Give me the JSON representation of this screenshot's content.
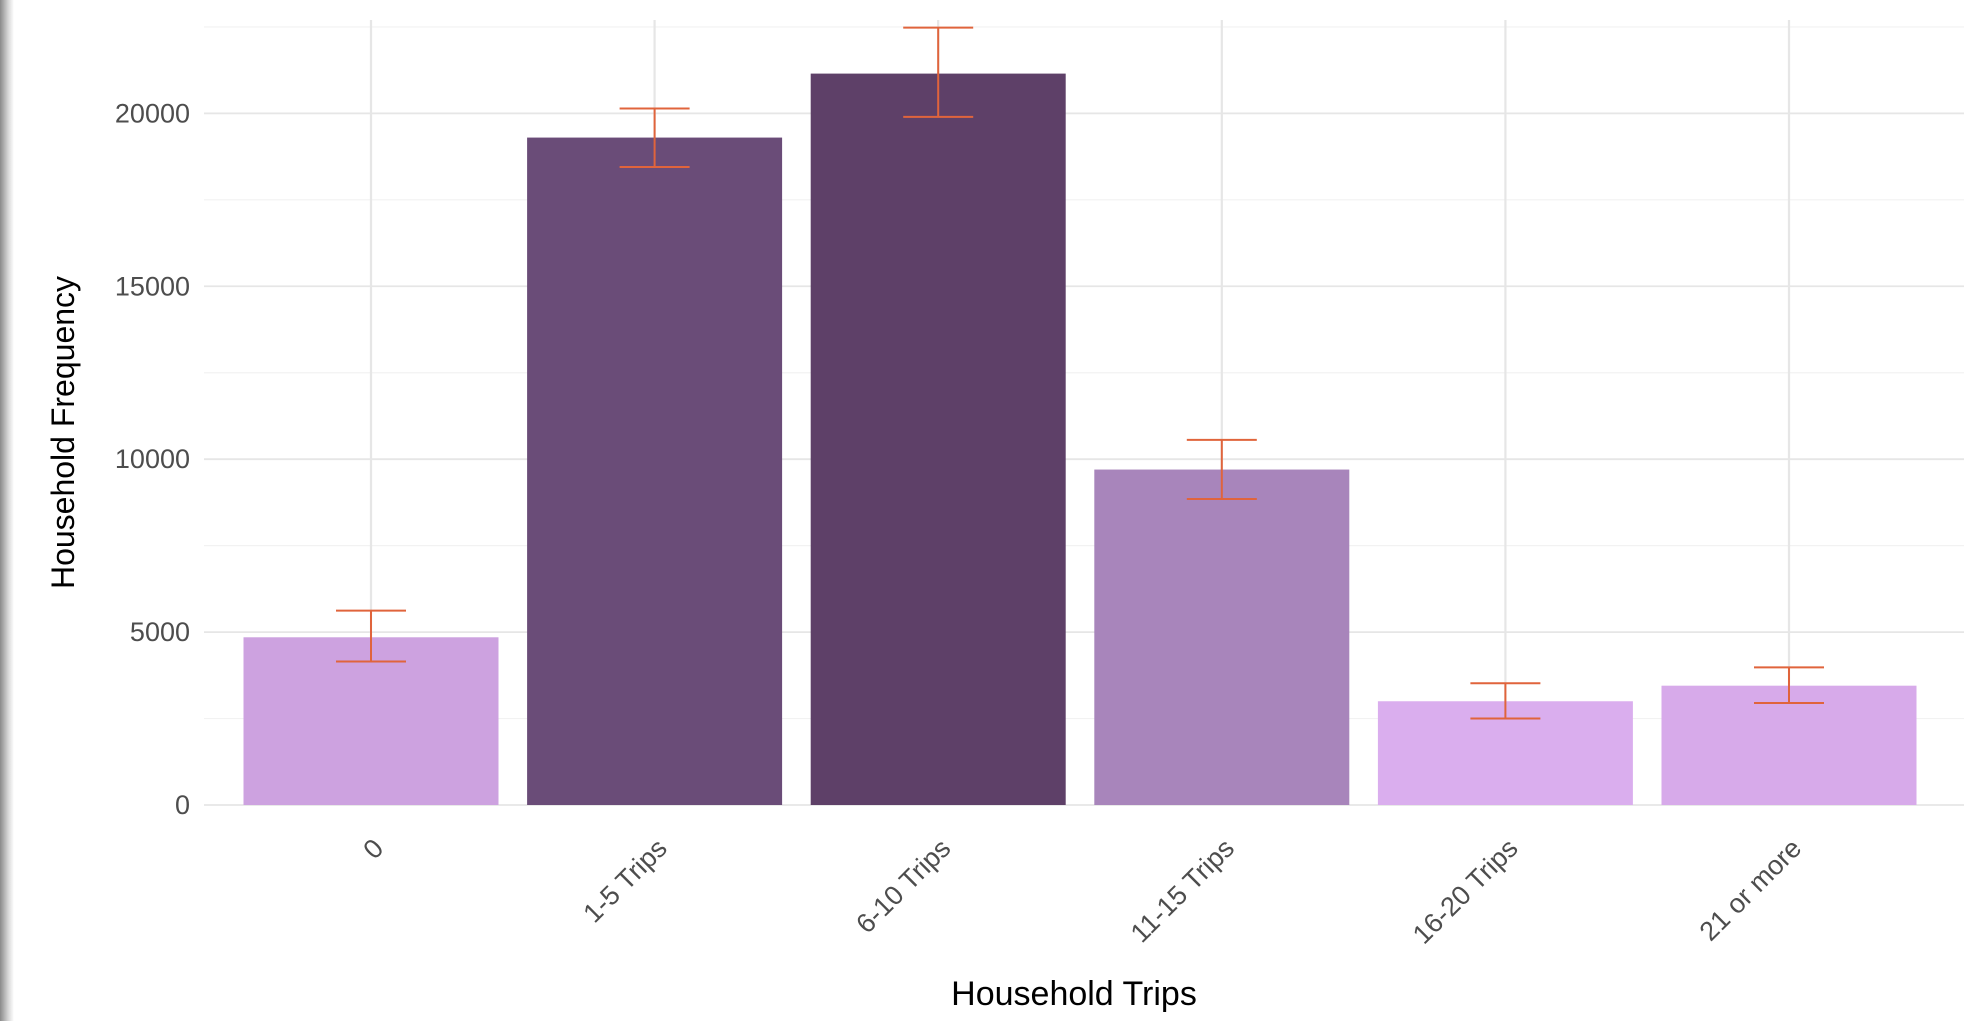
{
  "chart_data": {
    "type": "bar",
    "title": "",
    "xlabel": "Household Trips",
    "ylabel": "Household Frequency",
    "categories": [
      "0",
      "1-5 Trips",
      "6-10 Trips",
      "11-15 Trips",
      "16-20 Trips",
      "21 or more"
    ],
    "values": [
      4850,
      19300,
      21150,
      9700,
      3000,
      3450
    ],
    "error_bars": {
      "upper": [
        5620,
        20140,
        22480,
        10560,
        3520,
        3980
      ],
      "lower": [
        4150,
        18450,
        19900,
        8850,
        2500,
        2950
      ],
      "color": "#E0643C"
    },
    "bar_colors": [
      "#CDA2E0",
      "#6A4C78",
      "#5E4068",
      "#A885BB",
      "#DAAEEE",
      "#D7AAEA"
    ],
    "ylim": [
      0,
      22700
    ],
    "yticks": [
      0,
      5000,
      10000,
      15000,
      20000
    ],
    "grid": true,
    "legend": "none"
  }
}
